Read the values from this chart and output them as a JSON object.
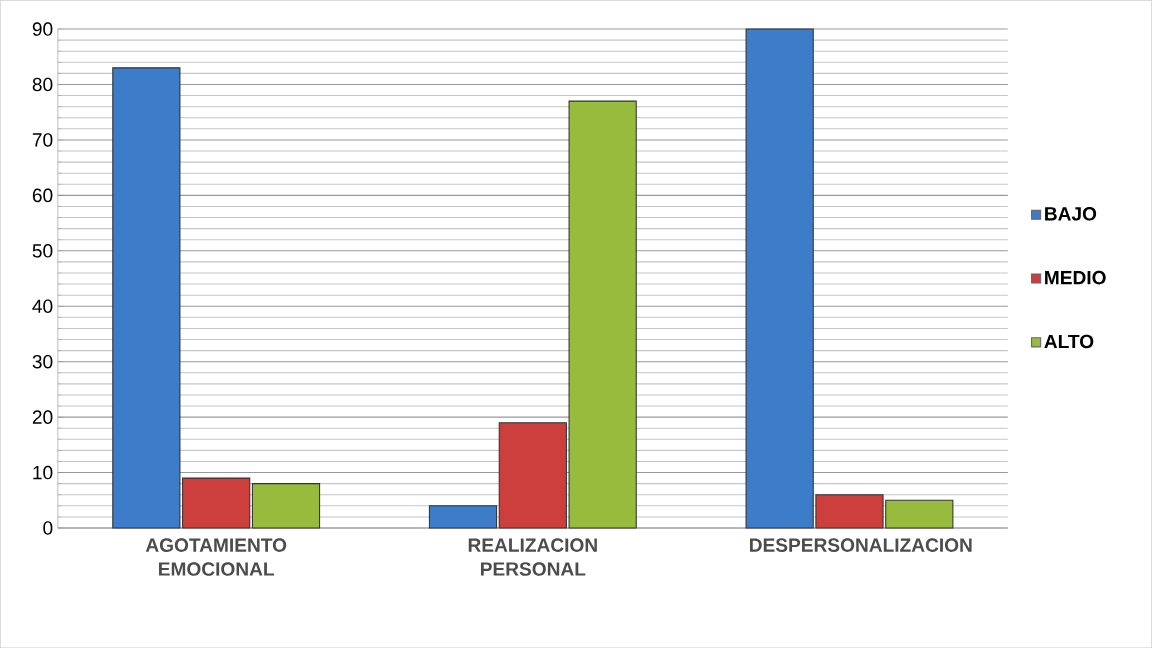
{
  "chart_data": {
    "type": "bar",
    "categories": [
      "AGOTAMIENTO EMOCIONAL",
      "REALIZACION PERSONAL",
      "DESPERSONALIZACION"
    ],
    "series": [
      {
        "name": "BAJO",
        "color": "#3d7cc9",
        "values": [
          83,
          4,
          90
        ]
      },
      {
        "name": "MEDIO",
        "color": "#cc3f3c",
        "values": [
          9,
          19,
          6
        ]
      },
      {
        "name": "ALTO",
        "color": "#97bb3d",
        "values": [
          8,
          77,
          5
        ]
      }
    ],
    "ylim": [
      0,
      90
    ],
    "yticks": [
      0,
      10,
      20,
      30,
      40,
      50,
      60,
      70,
      80,
      90
    ],
    "grid": "y",
    "legend": "right"
  }
}
